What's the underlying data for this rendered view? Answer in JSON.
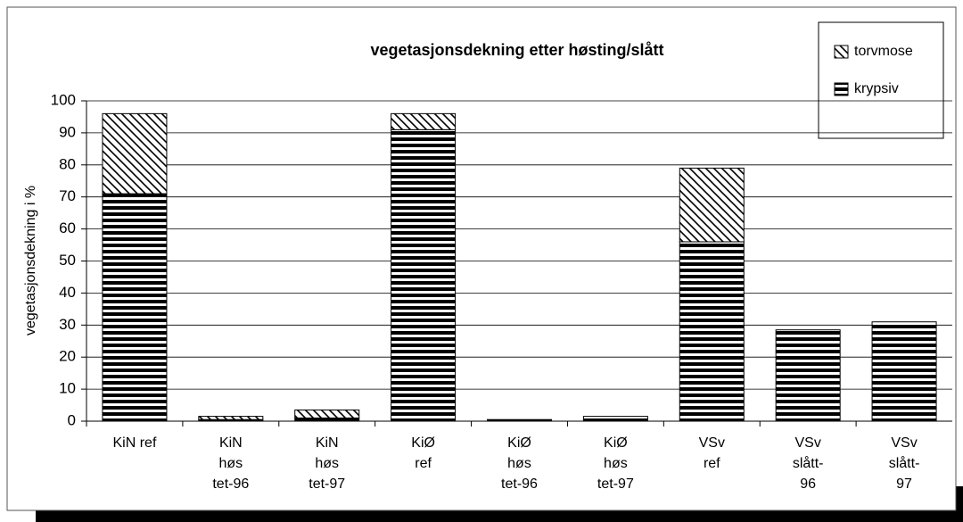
{
  "chart_data": {
    "type": "stacked_bar",
    "title": "vegetasjonsdekning etter høsting/slått",
    "y_label": "vegetasjonsdekning i %",
    "categories": [
      [
        "KiN ref"
      ],
      [
        "KiN",
        "høs",
        "tet-96"
      ],
      [
        "KiN",
        "høs",
        "tet-97"
      ],
      [
        "KiØ",
        "ref"
      ],
      [
        "KiØ",
        "høs",
        "tet-96"
      ],
      [
        "KiØ",
        "høs",
        "tet-97"
      ],
      [
        "VSv",
        "ref"
      ],
      [
        "VSv",
        "slått-",
        "96"
      ],
      [
        "VSv",
        "slått-",
        "97"
      ]
    ],
    "series": [
      {
        "name": "torvmose",
        "color": "#000000",
        "pattern": "diagonal",
        "values": [
          25,
          1,
          2.5,
          5,
          0,
          0,
          23,
          0,
          0
        ]
      },
      {
        "name": "krypsiv",
        "color": "#000000",
        "pattern": "horizontal",
        "values": [
          71,
          0.5,
          1,
          91,
          0.5,
          1.5,
          56,
          28.5,
          31
        ]
      }
    ],
    "ylim": [
      0,
      100
    ],
    "yticks": [
      0,
      10,
      20,
      30,
      40,
      50,
      60,
      70,
      80,
      90,
      100
    ],
    "grid": true,
    "legend": "upper right"
  }
}
